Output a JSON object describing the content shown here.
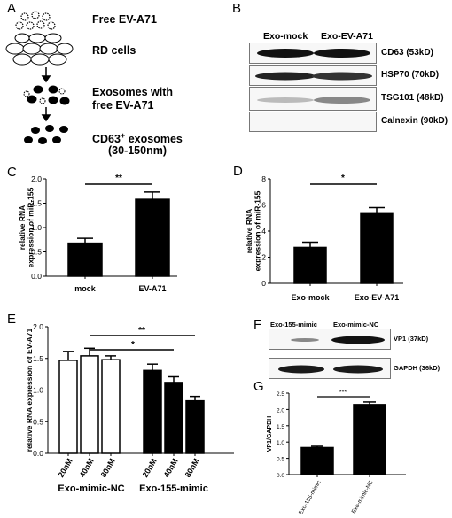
{
  "panels": {
    "A": "A",
    "B": "B",
    "C": "C",
    "D": "D",
    "E": "E",
    "F": "F",
    "G": "G"
  },
  "schematic": {
    "free_virus": "Free EV-A71",
    "rd_cells": "RD cells",
    "exosomes_line1": "Exosomes with",
    "exosomes_line2": "free EV-A71",
    "cd63_prefix": "CD63",
    "cd63_sup": "+",
    "cd63_suffix": " exosomes",
    "size_range": "(30-150nm)"
  },
  "blot_b": {
    "columns": [
      "Exo-mock",
      "Exo-EV-A71"
    ],
    "bands": [
      "CD63 (53kD)",
      "HSP70 (70kD)",
      "TSG101 (48kD)",
      "Calnexin (90kD)"
    ]
  },
  "blot_f": {
    "columns": [
      "Exo-155-mimic",
      "Exo-mimic-NC"
    ],
    "bands": [
      "VP1 (37kD)",
      "GAPDH (36kD)"
    ]
  },
  "chart_data": [
    {
      "panel": "C",
      "type": "bar",
      "categories": [
        "mock",
        "EV-A71"
      ],
      "values": [
        0.68,
        1.58
      ],
      "errors": [
        0.1,
        0.15
      ],
      "ylabel": "relative RNA expression of miR-155",
      "ylim": [
        0,
        2.0
      ],
      "yticks": [
        "0.0",
        "0.5",
        "1.0",
        "1.5",
        "2.0"
      ],
      "significance": "**",
      "bar_color": "#000000"
    },
    {
      "panel": "D",
      "type": "bar",
      "categories": [
        "Exo-mock",
        "Exo-EV-A71"
      ],
      "values": [
        2.75,
        5.4
      ],
      "errors": [
        0.4,
        0.4
      ],
      "ylabel": "relative RNA expression of miR-155",
      "ylim": [
        0,
        8
      ],
      "yticks": [
        "0",
        "2",
        "4",
        "6",
        "8"
      ],
      "significance": "*",
      "bar_color": "#000000"
    },
    {
      "panel": "E",
      "type": "bar",
      "groups": [
        "Exo-mimic-NC",
        "Exo-155-mimic"
      ],
      "categories": [
        "20nM",
        "40nM",
        "80nM",
        "20nM",
        "40nM",
        "80nM"
      ],
      "values": [
        1.47,
        1.54,
        1.48,
        1.31,
        1.12,
        0.83
      ],
      "errors": [
        0.14,
        0.12,
        0.06,
        0.1,
        0.09,
        0.07
      ],
      "group_colors": [
        "#ffffff",
        "#000000"
      ],
      "ylabel": "relative RNA expression of EV-A71",
      "ylim": [
        0,
        2.0
      ],
      "yticks": [
        "0.0",
        "0.5",
        "1.0",
        "1.5",
        "2.0"
      ],
      "significance": [
        "**",
        "*"
      ]
    },
    {
      "panel": "G",
      "type": "bar",
      "categories": [
        "Exo-155-mimic",
        "Exo-mimic-NC"
      ],
      "values": [
        0.83,
        2.15
      ],
      "errors": [
        0.04,
        0.08
      ],
      "ylabel": "VP1/GAPDH",
      "ylim": [
        0,
        2.5
      ],
      "yticks": [
        "0.0",
        "0.5",
        "1.0",
        "1.5",
        "2.0",
        "2.5"
      ],
      "significance": "***",
      "bar_color": "#000000"
    }
  ]
}
